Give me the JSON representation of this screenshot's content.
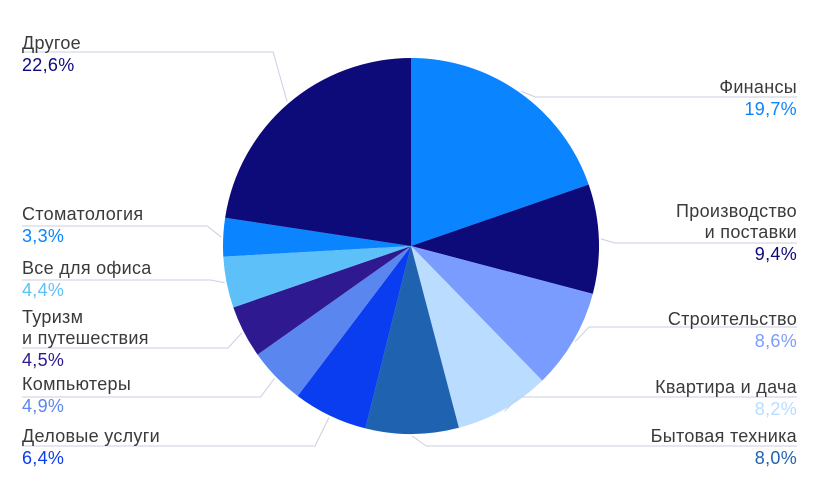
{
  "chart_data": {
    "type": "pie",
    "categories": [
      "Финансы",
      "Производство\nи поставки",
      "Строительство",
      "Квартира и дача",
      "Бытовая техника",
      "Деловые услуги",
      "Компьютеры",
      "Туризм\nи путешествия",
      "Все для офиса",
      "Стоматология",
      "Другое"
    ],
    "values": [
      19.7,
      9.4,
      8.6,
      8.2,
      8.0,
      6.4,
      4.9,
      4.5,
      4.4,
      3.3,
      22.6
    ],
    "value_labels": [
      "19,7%",
      "9,4%",
      "8,6%",
      "8,2%",
      "8,0%",
      "6,4%",
      "4,9%",
      "4,5%",
      "4,4%",
      "3,3%",
      "22,6%"
    ],
    "colors": [
      "#0a84ff",
      "#0d0a7a",
      "#7b9cff",
      "#b9dcff",
      "#1f63b0",
      "#0a3cf0",
      "#5a86f0",
      "#2e1990",
      "#5ec0f8",
      "#0a84ff",
      "#0d0a7a"
    ]
  }
}
